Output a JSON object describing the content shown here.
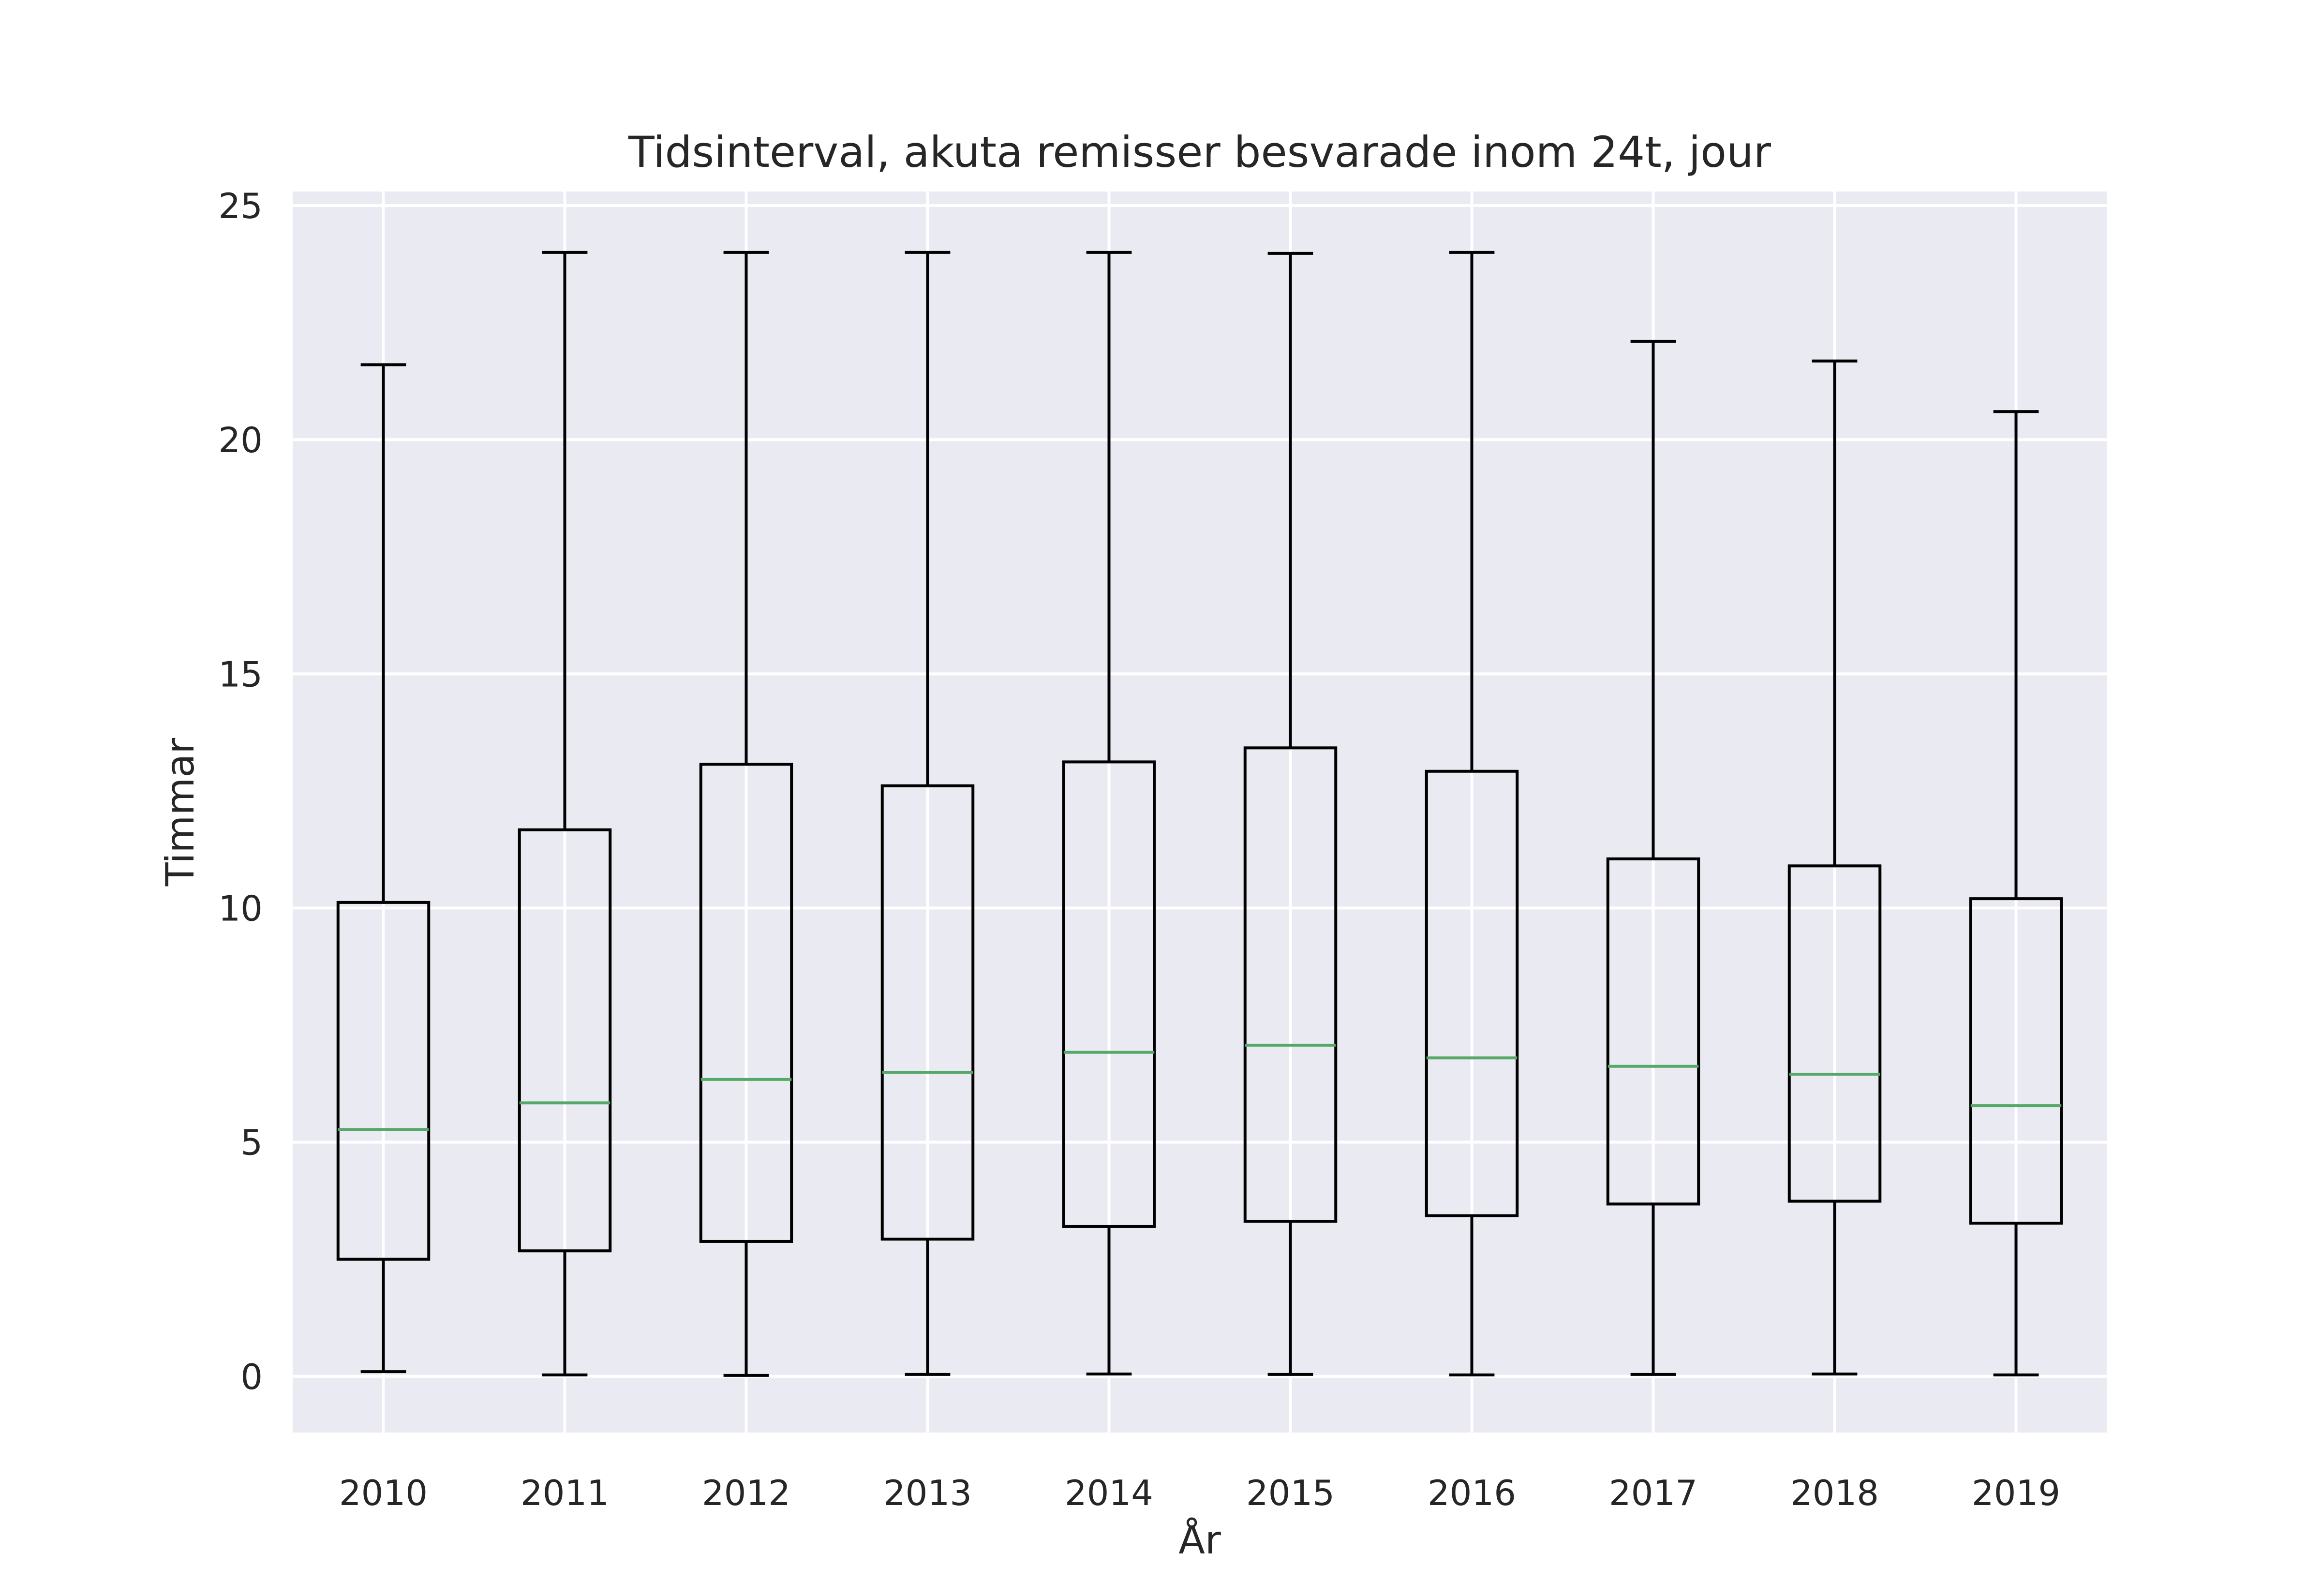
{
  "chart_data": {
    "type": "boxplot",
    "title": "Tidsinterval, akuta remisser besvarade inom 24t, jour",
    "xlabel": "År",
    "ylabel": "Timmar",
    "ylim": [
      -1.2,
      25.3
    ],
    "yticks": [
      0,
      5,
      10,
      15,
      20,
      25
    ],
    "grid": true,
    "colors": {
      "background": "#EAEAF2",
      "grid": "#FFFFFF",
      "box": "#000000",
      "median": "#55A868"
    },
    "categories": [
      "2010",
      "2011",
      "2012",
      "2013",
      "2014",
      "2015",
      "2016",
      "2017",
      "2018",
      "2019"
    ],
    "boxes": [
      {
        "year": "2010",
        "whisker_low": 0.1,
        "q1": 2.5,
        "median": 5.27,
        "q3": 10.12,
        "whisker_high": 21.6
      },
      {
        "year": "2011",
        "whisker_low": 0.03,
        "q1": 2.68,
        "median": 5.84,
        "q3": 11.67,
        "whisker_high": 24.0
      },
      {
        "year": "2012",
        "whisker_low": 0.02,
        "q1": 2.88,
        "median": 6.34,
        "q3": 13.07,
        "whisker_high": 24.0
      },
      {
        "year": "2013",
        "whisker_low": 0.04,
        "q1": 2.93,
        "median": 6.49,
        "q3": 12.61,
        "whisker_high": 24.0
      },
      {
        "year": "2014",
        "whisker_low": 0.05,
        "q1": 3.2,
        "median": 6.92,
        "q3": 13.12,
        "whisker_high": 24.0
      },
      {
        "year": "2015",
        "whisker_low": 0.04,
        "q1": 3.31,
        "median": 7.07,
        "q3": 13.42,
        "whisker_high": 23.98
      },
      {
        "year": "2016",
        "whisker_low": 0.03,
        "q1": 3.43,
        "median": 6.8,
        "q3": 12.92,
        "whisker_high": 24.0
      },
      {
        "year": "2017",
        "whisker_low": 0.04,
        "q1": 3.68,
        "median": 6.62,
        "q3": 11.05,
        "whisker_high": 22.1
      },
      {
        "year": "2018",
        "whisker_low": 0.05,
        "q1": 3.74,
        "median": 6.45,
        "q3": 10.9,
        "whisker_high": 21.68
      },
      {
        "year": "2019",
        "whisker_low": 0.03,
        "q1": 3.27,
        "median": 5.78,
        "q3": 10.2,
        "whisker_high": 20.6
      }
    ]
  }
}
